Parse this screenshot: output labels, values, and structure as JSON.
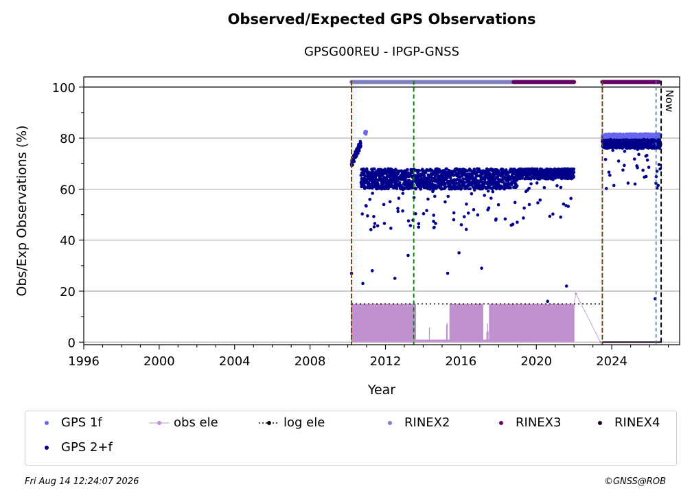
{
  "title": "Observed/Expected GPS Observations",
  "subtitle": "GPSG00REU - IPGP-GNSS",
  "footer_left": "Fri Aug 14 12:24:07 2026",
  "footer_right": "©GNSS@ROB",
  "now_label": "Now",
  "colors": {
    "gps1f": "#6666ee",
    "gps2f": "#00008b",
    "obs_ele": "#c090d0",
    "log_ele": "#000000",
    "rinex2": "#8080c0",
    "rinex3": "#660066",
    "rinex4": "#1a0020",
    "grid": "#b0b0b0",
    "green_lines": "#008000",
    "red_lines": "#cc0000",
    "blue_dashed": "#1f77b4"
  },
  "legend": [
    {
      "key": "gps1f",
      "label": "GPS 1f",
      "kind": "dot"
    },
    {
      "key": "obs_ele",
      "label": "obs ele",
      "kind": "line-dot"
    },
    {
      "key": "log_ele",
      "label": "log ele",
      "kind": "dotted-dot"
    },
    {
      "key": "rinex2",
      "label": "RINEX2",
      "kind": "dot"
    },
    {
      "key": "rinex3",
      "label": "RINEX3",
      "kind": "dot"
    },
    {
      "key": "rinex4",
      "label": "RINEX4",
      "kind": "dot"
    },
    {
      "key": "gps2f",
      "label": "GPS 2+f",
      "kind": "dot"
    }
  ],
  "chart_data": {
    "type": "scatter",
    "title": "Observed/Expected GPS Observations",
    "subtitle": "GPSG00REU - IPGP-GNSS",
    "xlabel": "Year",
    "ylabel": "Obs/Exp Observations (%)",
    "xlim": [
      1996,
      2027.6
    ],
    "ylim": [
      -1,
      104
    ],
    "xticks": [
      1996,
      2000,
      2004,
      2008,
      2012,
      2016,
      2020,
      2024
    ],
    "yticks": [
      0,
      20,
      40,
      60,
      80,
      100
    ],
    "grid": "horizontal",
    "legend_position": "bottom",
    "series": [
      {
        "name": "GPS 2+f",
        "segments": [
          {
            "x_start": 2010.2,
            "x_end": 2010.7,
            "y_start": 70,
            "y_end": 78
          },
          {
            "x_start": 2010.7,
            "x_end": 2019.0,
            "typical": 64,
            "spread": 4
          },
          {
            "x_start": 2019.0,
            "x_end": 2022.0,
            "typical": 66,
            "spread": 2
          },
          {
            "x_start": 2023.5,
            "x_end": 2026.6,
            "typical": 78,
            "spread": 2
          }
        ],
        "outliers": [
          [
            2010.2,
            27
          ],
          [
            2010.8,
            23
          ],
          [
            2011.3,
            28
          ],
          [
            2012.5,
            25
          ],
          [
            2013.2,
            34
          ],
          [
            2015.3,
            27
          ],
          [
            2015.9,
            35
          ],
          [
            2017.1,
            29
          ],
          [
            2020.6,
            16
          ],
          [
            2021.6,
            22
          ],
          [
            2026.3,
            17
          ],
          [
            2026.4,
            67
          ]
        ]
      },
      {
        "name": "GPS 1f",
        "segments": [
          {
            "x_start": 2010.9,
            "x_end": 2011.0,
            "y": 82
          },
          {
            "x_start": 2023.5,
            "x_end": 2026.6,
            "y": 81
          }
        ]
      },
      {
        "name": "obs ele",
        "typical": 15,
        "x_start": 2010.2,
        "x_end": 2022.0,
        "low": 0,
        "after": [
          [
            2022.1,
            19
          ],
          [
            2023.4,
            0
          ],
          [
            2026.6,
            0
          ]
        ]
      },
      {
        "name": "log ele",
        "y": 15,
        "x_start": 2010.2,
        "x_end": 2023.5
      },
      {
        "name": "RINEX2",
        "y": 102,
        "x_start": 2010.2,
        "x_end": 2018.8
      },
      {
        "name": "RINEX3",
        "y": 102,
        "segments": [
          [
            2018.8,
            2022.0
          ],
          [
            2023.5,
            2026.5
          ]
        ]
      },
      {
        "name": "RINEX4",
        "y": 0,
        "x_start": 2023.5,
        "x_end": 2026.6
      }
    ],
    "vertical_lines": [
      {
        "kind": "green-dashed",
        "x": 2010.2
      },
      {
        "kind": "red-dotted",
        "x": 2010.2
      },
      {
        "kind": "green-dashed",
        "x": 2013.5
      },
      {
        "kind": "green-dashed",
        "x": 2023.5
      },
      {
        "kind": "red-dotted",
        "x": 2023.5
      },
      {
        "kind": "blue-dashed",
        "x": 2026.35
      },
      {
        "kind": "black-dashed",
        "x": 2026.62,
        "label": "Now"
      }
    ],
    "reference_line": {
      "y": 100
    }
  }
}
